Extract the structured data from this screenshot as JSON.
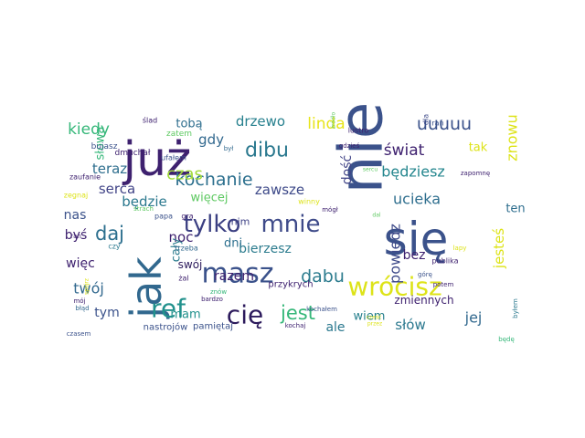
{
  "words": [
    {
      "text": "nie",
      "color": "#3b528b",
      "vertical": true
    },
    {
      "text": "się",
      "color": "#3b528b",
      "vertical": false
    },
    {
      "text": "już",
      "color": "#3e216f",
      "vertical": false
    },
    {
      "text": "jak",
      "color": "#31688e",
      "vertical": true
    },
    {
      "text": "masz",
      "color": "#3b528b",
      "vertical": false
    },
    {
      "text": "tylko",
      "color": "#3b3f82",
      "vertical": false
    },
    {
      "text": "mnie",
      "color": "#3e4a89",
      "vertical": false
    },
    {
      "text": "cię",
      "color": "#2c1a5c",
      "vertical": false
    },
    {
      "text": "ref",
      "color": "#21918c",
      "vertical": false
    },
    {
      "text": "wrócisz",
      "color": "#dde318",
      "vertical": false
    },
    {
      "text": "daj",
      "color": "#2c6f8e",
      "vertical": false
    },
    {
      "text": "dibu",
      "color": "#2a788e",
      "vertical": false
    },
    {
      "text": "jest",
      "color": "#35b779",
      "vertical": false
    },
    {
      "text": "dabu",
      "color": "#2c7c8e",
      "vertical": false
    },
    {
      "text": "kochanie",
      "color": "#2d708e",
      "vertical": false
    },
    {
      "text": "czas",
      "color": "#a0da39",
      "vertical": false
    },
    {
      "text": "świat",
      "color": "#3e216f",
      "vertical": false
    },
    {
      "text": "będziesz",
      "color": "#24868e",
      "vertical": false
    },
    {
      "text": "ucieka",
      "color": "#2e6e8e",
      "vertical": false
    },
    {
      "text": "uuuuu",
      "color": "#3b528b",
      "vertical": false
    },
    {
      "text": "drzewo",
      "color": "#27808e",
      "vertical": false
    },
    {
      "text": "linda",
      "color": "#e7e419",
      "vertical": false
    },
    {
      "text": "kiedy",
      "color": "#35b779",
      "vertical": false
    },
    {
      "text": "gdy",
      "color": "#31688e",
      "vertical": false
    },
    {
      "text": "tobą",
      "color": "#2e6e8e",
      "vertical": false
    },
    {
      "text": "teraz",
      "color": "#2e6e8e",
      "vertical": false
    },
    {
      "text": "serca",
      "color": "#414487",
      "vertical": false
    },
    {
      "text": "będzie",
      "color": "#2a788e",
      "vertical": false
    },
    {
      "text": "więcej",
      "color": "#5ec962",
      "vertical": false
    },
    {
      "text": "zawsze",
      "color": "#3e4a89",
      "vertical": false
    },
    {
      "text": "bierzesz",
      "color": "#2c7c8e",
      "vertical": false
    },
    {
      "text": "noc",
      "color": "#3e216f",
      "vertical": false
    },
    {
      "text": "dni",
      "color": "#2c6f8e",
      "vertical": false
    },
    {
      "text": "razem",
      "color": "#3e216f",
      "vertical": false
    },
    {
      "text": "twój",
      "color": "#31688e",
      "vertical": false
    },
    {
      "text": "więc",
      "color": "#3e216f",
      "vertical": false
    },
    {
      "text": "nas",
      "color": "#3b528b",
      "vertical": false
    },
    {
      "text": "byś",
      "color": "#3e216f",
      "vertical": false
    },
    {
      "text": "mam",
      "color": "#21918c",
      "vertical": false
    },
    {
      "text": "tym",
      "color": "#3b528b",
      "vertical": false
    },
    {
      "text": "ale",
      "color": "#2a788e",
      "vertical": false
    },
    {
      "text": "bez",
      "color": "#3e216f",
      "vertical": false
    },
    {
      "text": "jej",
      "color": "#31688e",
      "vertical": false
    },
    {
      "text": "słów",
      "color": "#2a788e",
      "vertical": false
    },
    {
      "text": "tak",
      "color": "#dde318",
      "vertical": false
    },
    {
      "text": "ten",
      "color": "#2e6e8e",
      "vertical": false
    },
    {
      "text": "znowu",
      "color": "#dde318",
      "vertical": true
    },
    {
      "text": "jesteś",
      "color": "#dde318",
      "vertical": true
    },
    {
      "text": "powiedz",
      "color": "#3e4a89",
      "vertical": true
    },
    {
      "text": "wiem",
      "color": "#27808e",
      "vertical": false
    },
    {
      "text": "dość",
      "color": "#414487",
      "vertical": true
    },
    {
      "text": "cały",
      "color": "#2c7c8e",
      "vertical": true
    },
    {
      "text": "słowa",
      "color": "#35b779",
      "vertical": true
    },
    {
      "text": "swój",
      "color": "#2c1a5c",
      "vertical": false
    },
    {
      "text": "nim",
      "color": "#414487",
      "vertical": false
    },
    {
      "text": "zmiennych",
      "color": "#3e216f",
      "vertical": false
    },
    {
      "text": "nastrojów",
      "color": "#3b528b",
      "vertical": false
    },
    {
      "text": "pamiętaj",
      "color": "#3b528b",
      "vertical": false
    },
    {
      "text": "przykrych",
      "color": "#3e216f",
      "vertical": false
    },
    {
      "text": "bujasz",
      "color": "#3b528b",
      "vertical": false
    },
    {
      "text": "zatem",
      "color": "#5ec962",
      "vertical": false
    },
    {
      "text": "ślad",
      "color": "#3e216f",
      "vertical": false
    },
    {
      "text": "rań",
      "color": "#3b528b",
      "vertical": false
    },
    {
      "text": "dla",
      "color": "#3e4a89",
      "vertical": true
    },
    {
      "text": "lustro",
      "color": "#3e216f",
      "vertical": false
    },
    {
      "text": "gdzieś",
      "color": "#3e216f",
      "vertical": false
    },
    {
      "text": "źródło",
      "color": "#5ec962",
      "vertical": true
    },
    {
      "text": "był",
      "color": "#31688e",
      "vertical": false
    },
    {
      "text": "dmuchał",
      "color": "#3e216f",
      "vertical": false
    },
    {
      "text": "ufałem",
      "color": "#3b528b",
      "vertical": false
    },
    {
      "text": "zaufanie",
      "color": "#3e216f",
      "vertical": false
    },
    {
      "text": "zegnaj",
      "color": "#dde318",
      "vertical": false
    },
    {
      "text": "ran",
      "color": "#3e216f",
      "vertical": false
    },
    {
      "text": "czy",
      "color": "#2a788e",
      "vertical": false
    },
    {
      "text": "papa",
      "color": "#3b528b",
      "vertical": false
    },
    {
      "text": "gra",
      "color": "#3e216f",
      "vertical": false
    },
    {
      "text": "trzeba",
      "color": "#31688e",
      "vertical": false
    },
    {
      "text": "winny",
      "color": "#dde318",
      "vertical": false
    },
    {
      "text": "mógł",
      "color": "#3e216f",
      "vertical": false
    },
    {
      "text": "strach",
      "color": "#5ec962",
      "vertical": false
    },
    {
      "text": "żal",
      "color": "#3e216f",
      "vertical": false
    },
    {
      "text": "znów",
      "color": "#35b779",
      "vertical": false
    },
    {
      "text": "bardzo",
      "color": "#3e216f",
      "vertical": false
    },
    {
      "text": "kochałem",
      "color": "#3b528b",
      "vertical": false
    },
    {
      "text": "kochaj",
      "color": "#3e216f",
      "vertical": false
    },
    {
      "text": "czasem",
      "color": "#3b528b",
      "vertical": false
    },
    {
      "text": "mój",
      "color": "#3e216f",
      "vertical": false
    },
    {
      "text": "błąd",
      "color": "#31688e",
      "vertical": false
    },
    {
      "text": "spójrz",
      "color": "#dde318",
      "vertical": true
    },
    {
      "text": "sercu",
      "color": "#5ec962",
      "vertical": false
    },
    {
      "text": "dal",
      "color": "#5ec962",
      "vertical": false
    },
    {
      "text": "lapy",
      "color": "#dde318",
      "vertical": false
    },
    {
      "text": "publika",
      "color": "#3e216f",
      "vertical": false
    },
    {
      "text": "górę",
      "color": "#3b528b",
      "vertical": false
    },
    {
      "text": "cześć",
      "color": "#dde318",
      "vertical": false
    },
    {
      "text": "przez",
      "color": "#dde318",
      "vertical": false
    },
    {
      "text": "potem",
      "color": "#3e216f",
      "vertical": false
    },
    {
      "text": "zapomnę",
      "color": "#3e216f",
      "vertical": false
    },
    {
      "text": "będę",
      "color": "#35b779",
      "vertical": false
    },
    {
      "text": "byłem",
      "color": "#2a788e",
      "vertical": true
    }
  ]
}
